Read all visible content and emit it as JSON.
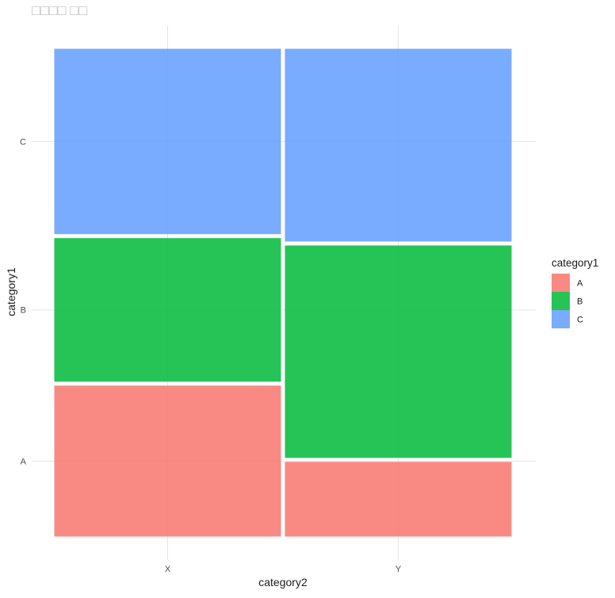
{
  "chart_data": {
    "type": "mosaic",
    "title": "□□□□ □□",
    "xlabel": "category2",
    "ylabel": "category1",
    "x_categories": [
      "X",
      "Y"
    ],
    "y_categories": [
      "A",
      "B",
      "C"
    ],
    "grid": true,
    "legend": {
      "title": "category1",
      "position": "right",
      "entries": [
        "A",
        "B",
        "C"
      ]
    },
    "colors": {
      "A": "#F8766D",
      "B": "#00BA38",
      "C": "#619CFF"
    },
    "fill_opacity": 0.85,
    "columns": [
      {
        "category": "X",
        "width_share": 0.5,
        "proportions": {
          "A": 0.315,
          "B": 0.3,
          "C": 0.385
        }
      },
      {
        "category": "Y",
        "width_share": 0.5,
        "proportions": {
          "A": 0.16,
          "B": 0.44,
          "C": 0.4
        }
      }
    ]
  }
}
